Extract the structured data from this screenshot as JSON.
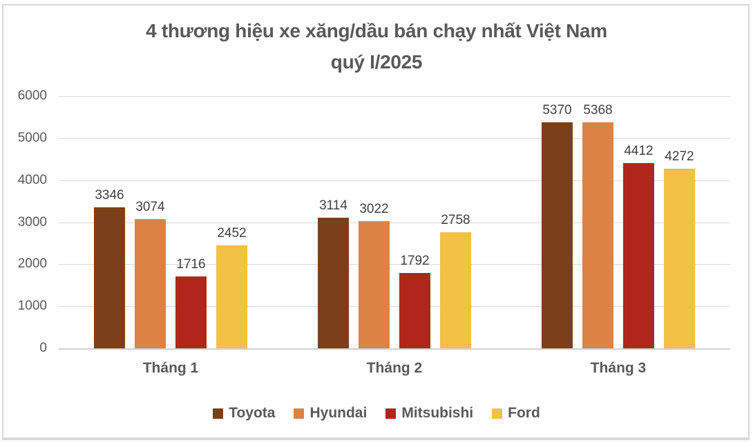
{
  "chart_data": {
    "type": "bar",
    "title_line1": "4 thương hiệu xe xăng/dầu bán chạy nhất Việt Nam",
    "title_line2": "quý I/2025",
    "categories": [
      "Tháng 1",
      "Tháng 2",
      "Tháng 3"
    ],
    "series": [
      {
        "name": "Toyota",
        "color": "#7B4019",
        "values": [
          3346,
          3114,
          5370
        ]
      },
      {
        "name": "Hyundai",
        "color": "#DD8245",
        "values": [
          3074,
          3022,
          5368
        ]
      },
      {
        "name": "Mitsubishi",
        "color": "#B1261A",
        "values": [
          1716,
          1792,
          4412
        ]
      },
      {
        "name": "Ford",
        "color": "#F3C245",
        "values": [
          2452,
          2758,
          4272
        ]
      }
    ],
    "xlabel": "",
    "ylabel": "",
    "ylim": [
      0,
      6000
    ],
    "yticks": [
      0,
      1000,
      2000,
      3000,
      4000,
      5000,
      6000
    ],
    "grid": true,
    "legend_position": "bottom"
  },
  "style": {
    "gridline_color": "#D9D9D9",
    "axis_line_color": "#D0D0D0",
    "text_color": "#595959",
    "value_label_color": "#3F3F3F",
    "frame_border_color": "#D9D9D9",
    "background": "#FFFFFF"
  }
}
